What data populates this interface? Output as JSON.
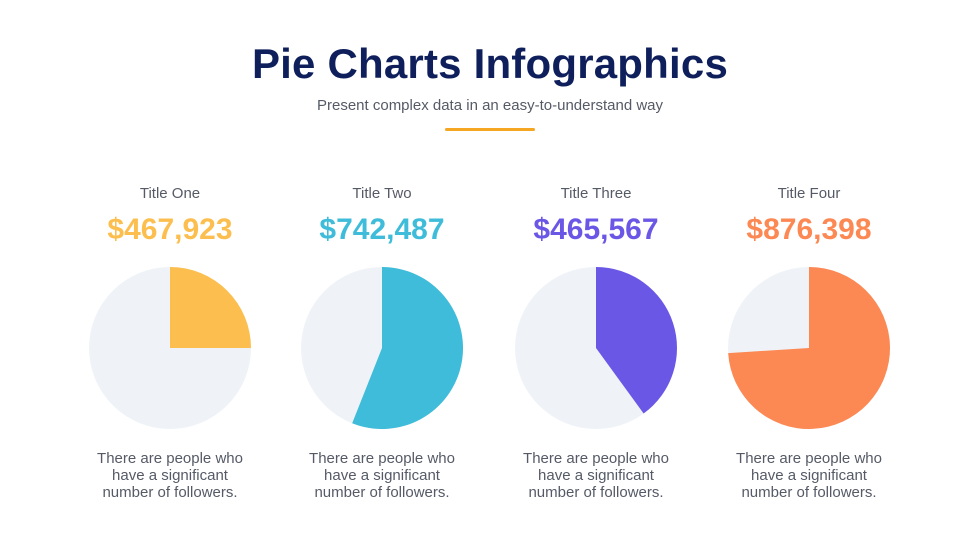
{
  "header": {
    "title": "Pie Charts Infographics",
    "subtitle": "Present complex data in an easy-to-understand way",
    "accent_color": "#f5a623"
  },
  "chart_data": [
    {
      "type": "pie",
      "title": "Title One",
      "amount": "$467,923",
      "color": "#fcbf4f",
      "background_color": "#eff3f7",
      "slice_percent": 25,
      "description": "There are people who have a significant number of followers."
    },
    {
      "type": "pie",
      "title": "Title Two",
      "amount": "$742,487",
      "color": "#3fbcd9",
      "background_color": "#eff3f7",
      "slice_percent": 56,
      "description": "There are people who have a significant number of followers."
    },
    {
      "type": "pie",
      "title": "Title Three",
      "amount": "$465,567",
      "color": "#6b57e6",
      "background_color": "#eff3f7",
      "slice_percent": 40,
      "description": "There are people who have a significant number of followers."
    },
    {
      "type": "pie",
      "title": "Title Four",
      "amount": "$876,398",
      "color": "#fc8853",
      "background_color": "#eff3f7",
      "slice_percent": 74,
      "description": "There are people who have a significant number of followers."
    }
  ]
}
